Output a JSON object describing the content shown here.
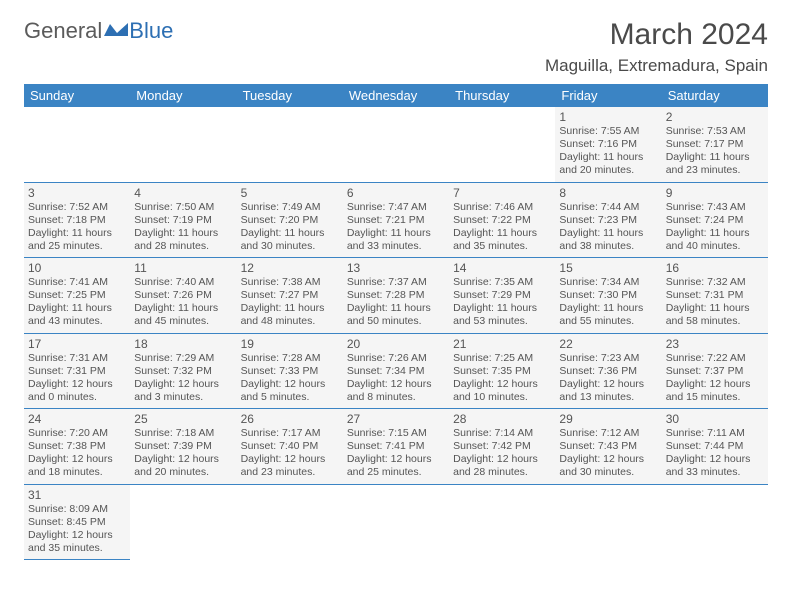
{
  "logo": {
    "part1": "General",
    "part2": "Blue"
  },
  "title": "March 2024",
  "location": "Maguilla, Extremadura, Spain",
  "colors": {
    "header_bg": "#3b84c4",
    "header_text": "#ffffff",
    "cell_bg": "#f5f5f5",
    "border": "#3b84c4",
    "text": "#555555",
    "logo_accent": "#2d6fb3"
  },
  "weekdays": [
    "Sunday",
    "Monday",
    "Tuesday",
    "Wednesday",
    "Thursday",
    "Friday",
    "Saturday"
  ],
  "first_weekday_index": 5,
  "days": [
    {
      "n": 1,
      "sunrise": "7:55 AM",
      "sunset": "7:16 PM",
      "daylight": "11 hours and 20 minutes."
    },
    {
      "n": 2,
      "sunrise": "7:53 AM",
      "sunset": "7:17 PM",
      "daylight": "11 hours and 23 minutes."
    },
    {
      "n": 3,
      "sunrise": "7:52 AM",
      "sunset": "7:18 PM",
      "daylight": "11 hours and 25 minutes."
    },
    {
      "n": 4,
      "sunrise": "7:50 AM",
      "sunset": "7:19 PM",
      "daylight": "11 hours and 28 minutes."
    },
    {
      "n": 5,
      "sunrise": "7:49 AM",
      "sunset": "7:20 PM",
      "daylight": "11 hours and 30 minutes."
    },
    {
      "n": 6,
      "sunrise": "7:47 AM",
      "sunset": "7:21 PM",
      "daylight": "11 hours and 33 minutes."
    },
    {
      "n": 7,
      "sunrise": "7:46 AM",
      "sunset": "7:22 PM",
      "daylight": "11 hours and 35 minutes."
    },
    {
      "n": 8,
      "sunrise": "7:44 AM",
      "sunset": "7:23 PM",
      "daylight": "11 hours and 38 minutes."
    },
    {
      "n": 9,
      "sunrise": "7:43 AM",
      "sunset": "7:24 PM",
      "daylight": "11 hours and 40 minutes."
    },
    {
      "n": 10,
      "sunrise": "7:41 AM",
      "sunset": "7:25 PM",
      "daylight": "11 hours and 43 minutes."
    },
    {
      "n": 11,
      "sunrise": "7:40 AM",
      "sunset": "7:26 PM",
      "daylight": "11 hours and 45 minutes."
    },
    {
      "n": 12,
      "sunrise": "7:38 AM",
      "sunset": "7:27 PM",
      "daylight": "11 hours and 48 minutes."
    },
    {
      "n": 13,
      "sunrise": "7:37 AM",
      "sunset": "7:28 PM",
      "daylight": "11 hours and 50 minutes."
    },
    {
      "n": 14,
      "sunrise": "7:35 AM",
      "sunset": "7:29 PM",
      "daylight": "11 hours and 53 minutes."
    },
    {
      "n": 15,
      "sunrise": "7:34 AM",
      "sunset": "7:30 PM",
      "daylight": "11 hours and 55 minutes."
    },
    {
      "n": 16,
      "sunrise": "7:32 AM",
      "sunset": "7:31 PM",
      "daylight": "11 hours and 58 minutes."
    },
    {
      "n": 17,
      "sunrise": "7:31 AM",
      "sunset": "7:31 PM",
      "daylight": "12 hours and 0 minutes."
    },
    {
      "n": 18,
      "sunrise": "7:29 AM",
      "sunset": "7:32 PM",
      "daylight": "12 hours and 3 minutes."
    },
    {
      "n": 19,
      "sunrise": "7:28 AM",
      "sunset": "7:33 PM",
      "daylight": "12 hours and 5 minutes."
    },
    {
      "n": 20,
      "sunrise": "7:26 AM",
      "sunset": "7:34 PM",
      "daylight": "12 hours and 8 minutes."
    },
    {
      "n": 21,
      "sunrise": "7:25 AM",
      "sunset": "7:35 PM",
      "daylight": "12 hours and 10 minutes."
    },
    {
      "n": 22,
      "sunrise": "7:23 AM",
      "sunset": "7:36 PM",
      "daylight": "12 hours and 13 minutes."
    },
    {
      "n": 23,
      "sunrise": "7:22 AM",
      "sunset": "7:37 PM",
      "daylight": "12 hours and 15 minutes."
    },
    {
      "n": 24,
      "sunrise": "7:20 AM",
      "sunset": "7:38 PM",
      "daylight": "12 hours and 18 minutes."
    },
    {
      "n": 25,
      "sunrise": "7:18 AM",
      "sunset": "7:39 PM",
      "daylight": "12 hours and 20 minutes."
    },
    {
      "n": 26,
      "sunrise": "7:17 AM",
      "sunset": "7:40 PM",
      "daylight": "12 hours and 23 minutes."
    },
    {
      "n": 27,
      "sunrise": "7:15 AM",
      "sunset": "7:41 PM",
      "daylight": "12 hours and 25 minutes."
    },
    {
      "n": 28,
      "sunrise": "7:14 AM",
      "sunset": "7:42 PM",
      "daylight": "12 hours and 28 minutes."
    },
    {
      "n": 29,
      "sunrise": "7:12 AM",
      "sunset": "7:43 PM",
      "daylight": "12 hours and 30 minutes."
    },
    {
      "n": 30,
      "sunrise": "7:11 AM",
      "sunset": "7:44 PM",
      "daylight": "12 hours and 33 minutes."
    },
    {
      "n": 31,
      "sunrise": "8:09 AM",
      "sunset": "8:45 PM",
      "daylight": "12 hours and 35 minutes."
    }
  ],
  "labels": {
    "sunrise": "Sunrise:",
    "sunset": "Sunset:",
    "daylight": "Daylight:"
  }
}
